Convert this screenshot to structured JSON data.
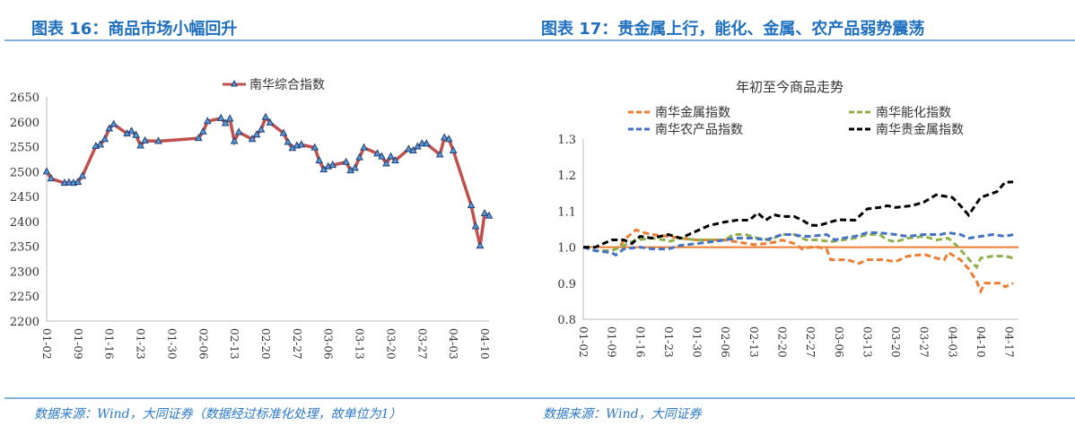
{
  "left": {
    "title": "图表 16：商品市场小幅回升",
    "source": "数据来源：Wind，大同证券（数据经过标准化处理，故单位为1）"
  },
  "right": {
    "title": "图表 17：贵金属上行，能化、金属、农产品弱势震荡",
    "source": "数据来源：Wind，大同证券"
  },
  "chart_data": [
    {
      "type": "line",
      "title": "",
      "legend": [
        "南华综合指数"
      ],
      "legend_position": "top-center",
      "ylim": [
        2200,
        2650
      ],
      "yticks": [
        2200,
        2250,
        2300,
        2350,
        2400,
        2450,
        2500,
        2550,
        2600,
        2650
      ],
      "xticks": [
        "01-02",
        "01-09",
        "01-16",
        "01-23",
        "01-30",
        "02-06",
        "02-13",
        "02-20",
        "02-27",
        "03-06",
        "03-13",
        "03-20",
        "03-27",
        "04-03",
        "04-10"
      ],
      "x_unit": "days since 01-02",
      "series": [
        {
          "name": "南华综合指数",
          "color": "#c0504d",
          "marker": "triangle",
          "points": [
            [
              0,
              2500
            ],
            [
              1,
              2486
            ],
            [
              4,
              2477
            ],
            [
              5,
              2478
            ],
            [
              6,
              2477
            ],
            [
              7,
              2479
            ],
            [
              8,
              2491
            ],
            [
              11,
              2551
            ],
            [
              12,
              2554
            ],
            [
              13,
              2565
            ],
            [
              14,
              2586
            ],
            [
              15,
              2595
            ],
            [
              18,
              2576
            ],
            [
              19,
              2581
            ],
            [
              20,
              2573
            ],
            [
              21,
              2552
            ],
            [
              22,
              2562
            ],
            [
              25,
              2561
            ],
            [
              34,
              2567
            ],
            [
              35,
              2580
            ],
            [
              36,
              2601
            ],
            [
              39,
              2607
            ],
            [
              40,
              2597
            ],
            [
              41,
              2606
            ],
            [
              42,
              2561
            ],
            [
              43,
              2579
            ],
            [
              46,
              2565
            ],
            [
              47,
              2574
            ],
            [
              48,
              2584
            ],
            [
              49,
              2609
            ],
            [
              50,
              2598
            ],
            [
              53,
              2577
            ],
            [
              54,
              2559
            ],
            [
              55,
              2547
            ],
            [
              56,
              2552
            ],
            [
              57,
              2554
            ],
            [
              60,
              2548
            ],
            [
              61,
              2522
            ],
            [
              62,
              2504
            ],
            [
              63,
              2510
            ],
            [
              64,
              2513
            ],
            [
              67,
              2519
            ],
            [
              68,
              2502
            ],
            [
              69,
              2507
            ],
            [
              70,
              2528
            ],
            [
              71,
              2548
            ],
            [
              74,
              2536
            ],
            [
              75,
              2530
            ],
            [
              76,
              2516
            ],
            [
              77,
              2530
            ],
            [
              78,
              2522
            ],
            [
              81,
              2545
            ],
            [
              82,
              2542
            ],
            [
              83,
              2550
            ],
            [
              84,
              2556
            ],
            [
              85,
              2556
            ],
            [
              88,
              2534
            ],
            [
              89,
              2568
            ],
            [
              90,
              2565
            ],
            [
              91,
              2542
            ],
            [
              95,
              2432
            ],
            [
              96,
              2390
            ],
            [
              97,
              2351
            ],
            [
              98,
              2416
            ],
            [
              99,
              2411
            ]
          ]
        }
      ]
    },
    {
      "type": "line",
      "title": "年初至今商品走势",
      "legend_position": "top",
      "ylim": [
        0.8,
        1.3
      ],
      "yticks": [
        "0.8",
        "0.9",
        "1.0",
        "1.1",
        "1.2",
        "1.3"
      ],
      "xticks": [
        "01-02",
        "01-09",
        "01-16",
        "01-23",
        "01-30",
        "02-06",
        "02-13",
        "02-20",
        "02-27",
        "03-06",
        "03-13",
        "03-20",
        "03-27",
        "04-03",
        "04-10",
        "04-17"
      ],
      "x_unit": "days since 01-02",
      "baseline": {
        "value": 1.0,
        "color": "#ed7d31"
      },
      "series": [
        {
          "name": "南华金属指数",
          "color": "#ed7d31",
          "points": [
            [
              0,
              1.0
            ],
            [
              3,
              0.99
            ],
            [
              7,
              0.99
            ],
            [
              9,
              1.0
            ],
            [
              10,
              1.02
            ],
            [
              13,
              1.048
            ],
            [
              15,
              1.04
            ],
            [
              17,
              1.035
            ],
            [
              21,
              1.03
            ],
            [
              24,
              1.025
            ],
            [
              28,
              1.02
            ],
            [
              35,
              1.02
            ],
            [
              42,
              1.007
            ],
            [
              45,
              1.01
            ],
            [
              48,
              1.015
            ],
            [
              49,
              1.02
            ],
            [
              52,
              1.01
            ],
            [
              54,
              0.995
            ],
            [
              56,
              1.0
            ],
            [
              58,
              1.0
            ],
            [
              60,
              0.995
            ],
            [
              61,
              0.965
            ],
            [
              65,
              0.965
            ],
            [
              68,
              0.955
            ],
            [
              70,
              0.965
            ],
            [
              74,
              0.965
            ],
            [
              77,
              0.96
            ],
            [
              80,
              0.975
            ],
            [
              84,
              0.98
            ],
            [
              87,
              0.97
            ],
            [
              89,
              0.965
            ],
            [
              90,
              0.985
            ],
            [
              93,
              0.965
            ],
            [
              95,
              0.94
            ],
            [
              97,
              0.905
            ],
            [
              98,
              0.878
            ],
            [
              99,
              0.9
            ],
            [
              101,
              0.9
            ],
            [
              103,
              0.9
            ],
            [
              104,
              0.89
            ],
            [
              106,
              0.9
            ]
          ]
        },
        {
          "name": "南华能化指数",
          "color": "#8fb04a",
          "points": [
            [
              0,
              1.0
            ],
            [
              3,
              0.99
            ],
            [
              7,
              0.99
            ],
            [
              10,
              1.005
            ],
            [
              13,
              1.02
            ],
            [
              17,
              1.025
            ],
            [
              20,
              1.02
            ],
            [
              21,
              1.015
            ],
            [
              24,
              1.025
            ],
            [
              28,
              1.02
            ],
            [
              32,
              1.02
            ],
            [
              35,
              1.02
            ],
            [
              37,
              1.035
            ],
            [
              40,
              1.035
            ],
            [
              43,
              1.025
            ],
            [
              46,
              1.02
            ],
            [
              49,
              1.035
            ],
            [
              52,
              1.035
            ],
            [
              55,
              1.02
            ],
            [
              58,
              1.02
            ],
            [
              61,
              1.015
            ],
            [
              64,
              1.02
            ],
            [
              67,
              1.025
            ],
            [
              70,
              1.035
            ],
            [
              73,
              1.035
            ],
            [
              75,
              1.02
            ],
            [
              77,
              1.015
            ],
            [
              80,
              1.025
            ],
            [
              84,
              1.03
            ],
            [
              87,
              1.02
            ],
            [
              90,
              1.025
            ],
            [
              92,
              1.005
            ],
            [
              94,
              0.98
            ],
            [
              96,
              0.955
            ],
            [
              97,
              0.945
            ],
            [
              98,
              0.97
            ],
            [
              101,
              0.975
            ],
            [
              104,
              0.975
            ],
            [
              106,
              0.97
            ]
          ]
        },
        {
          "name": "南华农产品指数",
          "color": "#4472c4",
          "points": [
            [
              0,
              1.0
            ],
            [
              3,
              0.99
            ],
            [
              7,
              0.985
            ],
            [
              8,
              0.978
            ],
            [
              10,
              0.995
            ],
            [
              14,
              1.0
            ],
            [
              17,
              0.995
            ],
            [
              21,
              0.995
            ],
            [
              24,
              1.005
            ],
            [
              28,
              1.01
            ],
            [
              35,
              1.02
            ],
            [
              38,
              1.025
            ],
            [
              42,
              1.025
            ],
            [
              45,
              1.02
            ],
            [
              49,
              1.035
            ],
            [
              52,
              1.035
            ],
            [
              54,
              1.03
            ],
            [
              56,
              1.03
            ],
            [
              60,
              1.035
            ],
            [
              62,
              1.02
            ],
            [
              64,
              1.025
            ],
            [
              67,
              1.03
            ],
            [
              70,
              1.04
            ],
            [
              73,
              1.04
            ],
            [
              77,
              1.035
            ],
            [
              80,
              1.03
            ],
            [
              84,
              1.035
            ],
            [
              88,
              1.035
            ],
            [
              90,
              1.04
            ],
            [
              93,
              1.035
            ],
            [
              95,
              1.025
            ],
            [
              98,
              1.03
            ],
            [
              101,
              1.035
            ],
            [
              104,
              1.03
            ],
            [
              106,
              1.035
            ]
          ]
        },
        {
          "name": "南华贵金属指数",
          "color": "#000000",
          "points": [
            [
              0,
              1.0
            ],
            [
              3,
              1.0
            ],
            [
              7,
              1.02
            ],
            [
              10,
              1.02
            ],
            [
              12,
              1.01
            ],
            [
              14,
              1.03
            ],
            [
              17,
              1.025
            ],
            [
              19,
              1.03
            ],
            [
              21,
              1.035
            ],
            [
              24,
              1.025
            ],
            [
              28,
              1.045
            ],
            [
              31,
              1.06
            ],
            [
              35,
              1.07
            ],
            [
              38,
              1.075
            ],
            [
              41,
              1.075
            ],
            [
              43,
              1.095
            ],
            [
              45,
              1.075
            ],
            [
              47,
              1.09
            ],
            [
              49,
              1.085
            ],
            [
              52,
              1.085
            ],
            [
              54,
              1.075
            ],
            [
              56,
              1.061
            ],
            [
              58,
              1.06
            ],
            [
              61,
              1.07
            ],
            [
              63,
              1.076
            ],
            [
              67,
              1.075
            ],
            [
              70,
              1.106
            ],
            [
              73,
              1.11
            ],
            [
              75,
              1.115
            ],
            [
              77,
              1.11
            ],
            [
              81,
              1.115
            ],
            [
              84,
              1.125
            ],
            [
              87,
              1.145
            ],
            [
              91,
              1.138
            ],
            [
              93,
              1.115
            ],
            [
              95,
              1.089
            ],
            [
              98,
              1.138
            ],
            [
              102,
              1.154
            ],
            [
              104,
              1.18
            ],
            [
              106,
              1.181
            ]
          ]
        }
      ]
    }
  ]
}
